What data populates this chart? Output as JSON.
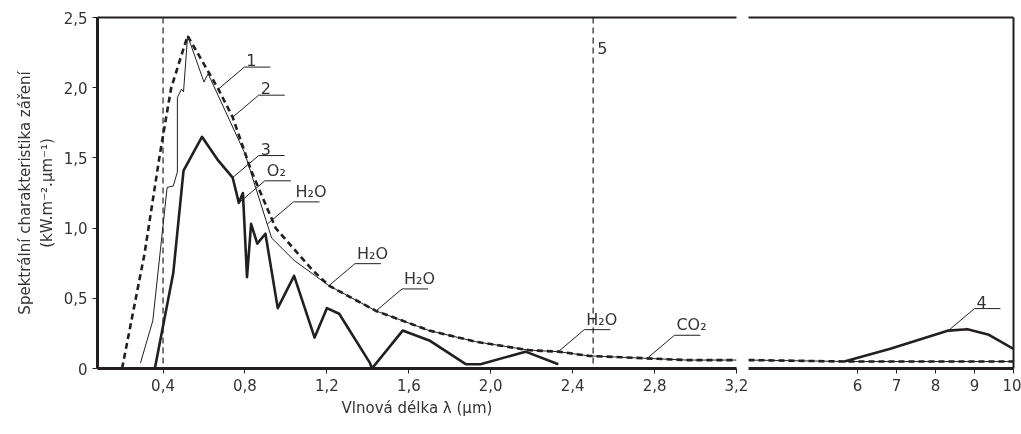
{
  "chart_data": [
    {
      "type": "line",
      "xlabel": "Vlnová délka λ (µm)",
      "ylabel": "Spektrální charakteristika záření\n(kW.m⁻².µm⁻¹)",
      "xlim": [
        0.08,
        3.2
      ],
      "ylim": [
        0,
        2.5
      ],
      "xticks": [
        {
          "value": 0.4,
          "label": "0,4"
        },
        {
          "value": 0.8,
          "label": "0,8"
        },
        {
          "value": 1.2,
          "label": "1,2"
        },
        {
          "value": 1.6,
          "label": "1,6"
        },
        {
          "value": 2.0,
          "label": "2,0"
        },
        {
          "value": 2.4,
          "label": "2,4"
        },
        {
          "value": 2.8,
          "label": "2,8"
        },
        {
          "value": 3.2,
          "label": "3,2"
        }
      ],
      "yticks": [
        0,
        {
          "value": 0.5,
          "label": "0,5"
        },
        {
          "value": 1.0,
          "label": "1,0"
        },
        {
          "value": 1.5,
          "label": "1,5"
        },
        {
          "value": 2.0,
          "label": "2,0"
        },
        {
          "value": 2.5,
          "label": "2,5"
        }
      ],
      "series": [
        {
          "color": "#231f20",
          "line_style": "solid",
          "x": [
            0.29,
            0.35,
            0.42,
            0.45,
            0.47,
            0.47,
            0.49,
            0.5,
            0.52,
            0.6,
            0.62,
            0.8,
            0.93,
            1.04,
            1.21,
            1.44,
            1.7,
            1.93,
            2.19,
            2.33,
            2.48,
            2.96,
            3.2
          ],
          "values": [
            0.04,
            0.34,
            1.29,
            1.3,
            1.4,
            1.93,
            1.99,
            1.97,
            2.37,
            2.04,
            2.1,
            1.53,
            0.93,
            0.77,
            0.59,
            0.41,
            0.27,
            0.19,
            0.13,
            0.12,
            0.09,
            0.06,
            0.06
          ]
        },
        {
          "color": "#231f20",
          "line_style": "dashed",
          "x": [
            0.2,
            0.31,
            0.385,
            0.44,
            0.52,
            0.67,
            0.74,
            0.83,
            0.95,
            1.13,
            1.21,
            1.44,
            1.7,
            1.93,
            2.19,
            2.33,
            2.48,
            2.96,
            3.2
          ],
          "values": [
            0,
            0.82,
            1.53,
            2.0,
            2.37,
            1.99,
            1.79,
            1.41,
            1.0,
            0.7,
            0.59,
            0.41,
            0.27,
            0.19,
            0.13,
            0.12,
            0.09,
            0.06,
            0.06
          ]
        },
        {
          "color": "#231f20",
          "line_style": "solid",
          "x": [
            0.36,
            0.45,
            0.5,
            0.59,
            0.67,
            0.74,
            0.77,
            0.79,
            0.81,
            0.83,
            0.86,
            0.9,
            0.96,
            1.04,
            1.14,
            1.2,
            1.26,
            1.41,
            1.42,
            1.57,
            1.7,
            1.88,
            1.95,
            2.17,
            2.33
          ],
          "values": [
            0,
            0.68,
            1.41,
            1.65,
            1.48,
            1.36,
            1.18,
            1.25,
            0.65,
            1.03,
            0.89,
            0.96,
            0.43,
            0.66,
            0.22,
            0.43,
            0.39,
            0.04,
            0,
            0.27,
            0.2,
            0.03,
            0.03,
            0.12,
            0.03
          ]
        }
      ],
      "ref_lines": [
        {
          "axis": "x",
          "value": 0.4,
          "line_style": "dashed"
        },
        {
          "axis": "x",
          "value": 2.5,
          "line_style": "dashed"
        }
      ],
      "annotations": [
        {
          "text": "1",
          "x": 0.67,
          "y": 1.99
        },
        {
          "text": "2",
          "x": 0.74,
          "y": 1.79
        },
        {
          "text": "3",
          "x": 0.74,
          "y": 1.36
        },
        {
          "text": "O₂",
          "x": 0.77,
          "y": 1.18
        },
        {
          "text": "H₂O",
          "x": 0.91,
          "y": 1.03
        },
        {
          "text": "H₂O",
          "x": 1.21,
          "y": 0.59
        },
        {
          "text": "H₂O",
          "x": 1.44,
          "y": 0.41
        },
        {
          "text": "H₂O",
          "x": 2.33,
          "y": 0.12
        },
        {
          "text": "CO₂",
          "x": 2.77,
          "y": 0.08
        },
        {
          "text": "5",
          "x": 2.5,
          "y": 2.3
        }
      ]
    },
    {
      "type": "line",
      "xlim": [
        3.2,
        10
      ],
      "ylim": [
        0,
        2.5
      ],
      "xticks": [
        6,
        7,
        8,
        9,
        10
      ],
      "tick_labels": "x",
      "series": [
        {
          "color": "#231f20",
          "line_style": "solid",
          "x": [
            3.2,
            5.66,
            10
          ],
          "values": [
            0.06,
            0.05,
            0.05
          ]
        },
        {
          "color": "#231f20",
          "line_style": "dashed",
          "x": [
            3.2,
            5.66,
            10
          ],
          "values": [
            0.06,
            0.05,
            0.05
          ]
        },
        {
          "color": "#231f20",
          "line_style": "solid",
          "x": [
            5.66,
            6.84,
            8.33,
            8.82,
            9.37,
            10
          ],
          "values": [
            0.05,
            0.14,
            0.27,
            0.28,
            0.24,
            0.14
          ]
        }
      ],
      "annotations": [
        {
          "text": "4",
          "x": 8.33,
          "y": 0.27
        }
      ]
    }
  ]
}
